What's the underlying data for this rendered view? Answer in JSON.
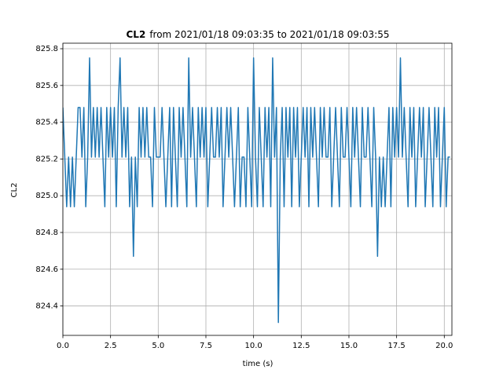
{
  "chart_data": {
    "type": "line",
    "title_bold": "CL2",
    "title": "from 2021/01/18 09:03:35 to 2021/01/18 09:03:55",
    "xlabel": "time (s)",
    "ylabel": "CL2",
    "color": "#1f77b4",
    "grid": true,
    "xlim": [
      0,
      20.4
    ],
    "ylim": [
      824.24,
      825.83
    ],
    "xticks": [
      {
        "value": 0,
        "label": "0.0"
      },
      2.5,
      {
        "value": 5,
        "label": "5.0"
      },
      7.5,
      {
        "value": 10,
        "label": "10.0"
      },
      12.5,
      {
        "value": 15,
        "label": "15.0"
      },
      17.5,
      {
        "value": 20,
        "label": "20.0"
      }
    ],
    "yticks": [
      824.4,
      824.6,
      824.8,
      {
        "value": 825,
        "label": "825.0"
      },
      825.2,
      825.4,
      825.6,
      825.8
    ],
    "x": [
      0,
      0.1,
      0.2,
      0.3,
      0.4,
      0.5,
      0.6,
      0.7,
      0.8,
      0.9,
      1,
      1.1,
      1.2,
      1.3,
      1.4,
      1.5,
      1.6,
      1.7,
      1.8,
      1.9,
      2,
      2.1,
      2.2,
      2.3,
      2.4,
      2.5,
      2.6,
      2.7,
      2.8,
      2.9,
      3,
      3.1,
      3.2,
      3.3,
      3.4,
      3.5,
      3.6,
      3.7,
      3.8,
      3.9,
      4,
      4.1,
      4.2,
      4.3,
      4.4,
      4.5,
      4.6,
      4.7,
      4.8,
      4.9,
      5,
      5.1,
      5.2,
      5.3,
      5.4,
      5.5,
      5.6,
      5.7,
      5.8,
      5.9,
      6,
      6.1,
      6.2,
      6.3,
      6.4,
      6.5,
      6.6,
      6.7,
      6.8,
      6.9,
      7,
      7.1,
      7.2,
      7.3,
      7.4,
      7.5,
      7.6,
      7.7,
      7.8,
      7.9,
      8,
      8.1,
      8.2,
      8.3,
      8.4,
      8.5,
      8.6,
      8.7,
      8.8,
      8.9,
      9,
      9.1,
      9.2,
      9.3,
      9.4,
      9.5,
      9.6,
      9.7,
      9.8,
      9.9,
      10,
      10.1,
      10.2,
      10.3,
      10.4,
      10.5,
      10.6,
      10.7,
      10.8,
      10.9,
      11,
      11.1,
      11.2,
      11.3,
      11.4,
      11.5,
      11.6,
      11.7,
      11.8,
      11.9,
      12,
      12.1,
      12.2,
      12.3,
      12.4,
      12.5,
      12.6,
      12.7,
      12.8,
      12.9,
      13,
      13.1,
      13.2,
      13.3,
      13.4,
      13.5,
      13.6,
      13.7,
      13.8,
      13.9,
      14,
      14.1,
      14.2,
      14.3,
      14.4,
      14.5,
      14.6,
      14.7,
      14.8,
      14.9,
      15,
      15.1,
      15.2,
      15.3,
      15.4,
      15.5,
      15.6,
      15.7,
      15.8,
      15.9,
      16,
      16.1,
      16.2,
      16.3,
      16.4,
      16.5,
      16.6,
      16.7,
      16.8,
      16.9,
      17,
      17.1,
      17.2,
      17.3,
      17.4,
      17.5,
      17.6,
      17.7,
      17.8,
      17.9,
      18,
      18.1,
      18.2,
      18.3,
      18.4,
      18.5,
      18.6,
      18.7,
      18.8,
      18.9,
      19,
      19.1,
      19.2,
      19.3,
      19.4,
      19.5,
      19.6,
      19.7,
      19.8,
      19.9,
      20,
      20.1,
      20.2,
      20.3
    ],
    "values": [
      825.48,
      825.21,
      824.94,
      825.21,
      824.94,
      825.21,
      824.94,
      825.21,
      825.48,
      825.48,
      825.21,
      825.48,
      824.94,
      825.21,
      825.75,
      825.21,
      825.48,
      825.21,
      825.48,
      825.21,
      825.48,
      825.21,
      824.94,
      825.48,
      825.21,
      825.48,
      825.21,
      825.48,
      824.94,
      825.48,
      825.75,
      825.21,
      825.48,
      825.21,
      825.48,
      824.94,
      825.21,
      824.67,
      825.21,
      824.94,
      825.48,
      825.21,
      825.48,
      825.21,
      825.48,
      825.21,
      825.21,
      824.94,
      825.48,
      825.21,
      825.21,
      825.21,
      825.48,
      825.21,
      824.94,
      825.21,
      825.48,
      824.94,
      825.48,
      825.21,
      824.94,
      825.48,
      825.21,
      825.48,
      825.21,
      824.94,
      825.75,
      825.21,
      825.48,
      825.21,
      824.94,
      825.48,
      825.21,
      825.48,
      825.21,
      825.48,
      824.94,
      825.21,
      825.48,
      825.21,
      825.21,
      825.48,
      825.21,
      825.48,
      824.94,
      825.21,
      825.48,
      825.21,
      825.48,
      825.21,
      824.94,
      825.21,
      825.48,
      824.94,
      825.21,
      825.21,
      824.94,
      825.48,
      825.21,
      824.94,
      825.75,
      825.21,
      824.94,
      825.48,
      825.21,
      824.94,
      825.48,
      825.21,
      825.48,
      824.94,
      825.75,
      825.21,
      825.48,
      824.31,
      825.21,
      825.48,
      824.94,
      825.48,
      825.21,
      825.48,
      824.94,
      825.48,
      825.21,
      825.48,
      824.94,
      825.21,
      825.48,
      825.21,
      825.48,
      824.94,
      825.48,
      825.21,
      825.48,
      825.21,
      824.94,
      825.48,
      825.21,
      825.48,
      825.21,
      825.21,
      825.48,
      824.94,
      825.21,
      825.48,
      825.21,
      824.94,
      825.48,
      825.21,
      825.21,
      825.48,
      825.21,
      824.94,
      825.48,
      825.21,
      825.48,
      825.21,
      824.94,
      825.48,
      825.21,
      825.21,
      825.48,
      825.21,
      824.94,
      825.48,
      825.21,
      824.67,
      825.21,
      824.94,
      825.21,
      824.94,
      825.21,
      825.48,
      824.94,
      825.48,
      825.21,
      825.48,
      825.21,
      825.75,
      825.21,
      825.48,
      825.21,
      824.94,
      825.48,
      825.21,
      825.48,
      824.94,
      825.21,
      825.48,
      825.21,
      825.48,
      824.94,
      825.21,
      825.48,
      825.21,
      824.94,
      825.48,
      825.21,
      825.48,
      824.94,
      825.21,
      825.48,
      824.94,
      825.21,
      825.21
    ]
  }
}
